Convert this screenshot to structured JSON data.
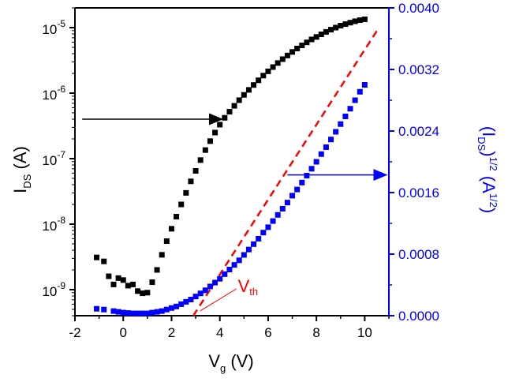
{
  "chart_data": {
    "type": "scatter",
    "x_axis": {
      "label": "V",
      "label_sub": "g",
      "label_unit": " (V)",
      "range": [
        -2,
        11
      ],
      "ticks": [
        -2,
        0,
        2,
        4,
        6,
        8,
        10
      ],
      "tick_labels": [
        "-2",
        "0",
        "2",
        "4",
        "6",
        "8",
        "10"
      ]
    },
    "y_left": {
      "label": "I",
      "label_sub": "DS",
      "label_unit": " (A)",
      "scale": "log",
      "range": [
        4e-10,
        2e-05
      ],
      "ticks": [
        1e-09,
        1e-08,
        1e-07,
        1e-06,
        1e-05
      ],
      "tick_mantissa": "10",
      "tick_exponents": [
        "-9",
        "-8",
        "-7",
        "-6",
        "-5"
      ],
      "color": "#000000"
    },
    "y_right": {
      "label_open": "(I",
      "label_sub": "DS",
      "label_mid": ")",
      "label_sup": "1/2",
      "label_unit_open": " (A",
      "label_unit_sup": "1/2",
      "label_unit_close": ")",
      "scale": "linear",
      "range": [
        0,
        0.004
      ],
      "ticks": [
        0,
        0.0008,
        0.0016,
        0.0024,
        0.0032,
        0.004
      ],
      "tick_labels": [
        "0.0000",
        "0.0008",
        "0.0016",
        "0.0024",
        "0.0032",
        "0.0040"
      ],
      "color": "#0000ff"
    },
    "series": [
      {
        "axis": "left",
        "color": "#000000",
        "marker": "square",
        "points": [
          [
            -1.1,
            3.1e-09
          ],
          [
            -0.8,
            2.7e-09
          ],
          [
            -0.6,
            1.6e-09
          ],
          [
            -0.4,
            1.2e-09
          ],
          [
            -0.2,
            1.5e-09
          ],
          [
            0.0,
            1.4e-09
          ],
          [
            0.2,
            1.15e-09
          ],
          [
            0.4,
            1.2e-09
          ],
          [
            0.6,
            9.5e-10
          ],
          [
            0.8,
            8.8e-10
          ],
          [
            1.0,
            9e-10
          ],
          [
            1.2,
            1.3e-09
          ],
          [
            1.4,
            2e-09
          ],
          [
            1.6,
            3.4e-09
          ],
          [
            1.8,
            5.5e-09
          ],
          [
            2.0,
            8.5e-09
          ],
          [
            2.2,
            1.3e-08
          ],
          [
            2.4,
            2e-08
          ],
          [
            2.6,
            3e-08
          ],
          [
            2.8,
            4.5e-08
          ],
          [
            3.0,
            6.5e-08
          ],
          [
            3.2,
            9.5e-08
          ],
          [
            3.4,
            1.35e-07
          ],
          [
            3.6,
            1.85e-07
          ],
          [
            3.8,
            2.5e-07
          ],
          [
            4.0,
            3.3e-07
          ],
          [
            4.2,
            4.2e-07
          ],
          [
            4.4,
            5.2e-07
          ],
          [
            4.6,
            6.4e-07
          ],
          [
            4.8,
            7.8e-07
          ],
          [
            5.0,
            9.4e-07
          ],
          [
            5.2,
            1.12e-06
          ],
          [
            5.4,
            1.33e-06
          ],
          [
            5.6,
            1.57e-06
          ],
          [
            5.8,
            1.85e-06
          ],
          [
            6.0,
            2.15e-06
          ],
          [
            6.2,
            2.5e-06
          ],
          [
            6.4,
            2.88e-06
          ],
          [
            6.6,
            3.3e-06
          ],
          [
            6.8,
            3.75e-06
          ],
          [
            7.0,
            4.25e-06
          ],
          [
            7.2,
            4.8e-06
          ],
          [
            7.4,
            5.35e-06
          ],
          [
            7.6,
            5.95e-06
          ],
          [
            7.8,
            6.6e-06
          ],
          [
            8.0,
            7.2e-06
          ],
          [
            8.2,
            7.9e-06
          ],
          [
            8.4,
            8.6e-06
          ],
          [
            8.6,
            9.3e-06
          ],
          [
            8.8,
            1e-05
          ],
          [
            9.0,
            1.07e-05
          ],
          [
            9.2,
            1.13e-05
          ],
          [
            9.4,
            1.19e-05
          ],
          [
            9.6,
            1.25e-05
          ],
          [
            9.8,
            1.3e-05
          ],
          [
            10.0,
            1.34e-05
          ]
        ]
      },
      {
        "axis": "right",
        "color": "#0000ff",
        "marker": "square",
        "points": [
          [
            -1.1,
            9e-05
          ],
          [
            -0.8,
            8e-05
          ],
          [
            -0.4,
            6e-05
          ],
          [
            -0.2,
            5e-05
          ],
          [
            0.0,
            4e-05
          ],
          [
            0.2,
            3.5e-05
          ],
          [
            0.4,
            3e-05
          ],
          [
            0.6,
            3e-05
          ],
          [
            0.8,
            3e-05
          ],
          [
            1.0,
            3e-05
          ],
          [
            1.2,
            4e-05
          ],
          [
            1.4,
            5e-05
          ],
          [
            1.6,
            6e-05
          ],
          [
            1.8,
            8e-05
          ],
          [
            2.0,
            0.0001
          ],
          [
            2.2,
            0.00012
          ],
          [
            2.4,
            0.00015
          ],
          [
            2.6,
            0.00018
          ],
          [
            2.8,
            0.00021
          ],
          [
            3.0,
            0.00025
          ],
          [
            3.2,
            0.00029
          ],
          [
            3.4,
            0.00033
          ],
          [
            3.6,
            0.00038
          ],
          [
            3.8,
            0.00043
          ],
          [
            4.0,
            0.00048
          ],
          [
            4.2,
            0.00054
          ],
          [
            4.4,
            0.0006
          ],
          [
            4.6,
            0.00066
          ],
          [
            4.8,
            0.00072
          ],
          [
            5.0,
            0.00079
          ],
          [
            5.2,
            0.00086
          ],
          [
            5.4,
            0.00093
          ],
          [
            5.6,
            0.001
          ],
          [
            5.8,
            0.00108
          ],
          [
            6.0,
            0.00115
          ],
          [
            6.2,
            0.00123
          ],
          [
            6.4,
            0.00131
          ],
          [
            6.6,
            0.00139
          ],
          [
            6.8,
            0.00147
          ],
          [
            7.0,
            0.00156
          ],
          [
            7.2,
            0.00164
          ],
          [
            7.4,
            0.00173
          ],
          [
            7.6,
            0.00182
          ],
          [
            7.8,
            0.00191
          ],
          [
            8.0,
            0.002
          ],
          [
            8.2,
            0.0021
          ],
          [
            8.4,
            0.00219
          ],
          [
            8.6,
            0.00229
          ],
          [
            8.8,
            0.00239
          ],
          [
            9.0,
            0.00249
          ],
          [
            9.2,
            0.00259
          ],
          [
            9.4,
            0.00269
          ],
          [
            9.6,
            0.0028
          ],
          [
            9.8,
            0.00291
          ],
          [
            10.0,
            0.003
          ]
        ]
      }
    ],
    "fit_line": {
      "axis": "right",
      "color": "#ff0000",
      "style": "dashed",
      "from": [
        2.9,
        0
      ],
      "to": [
        10.5,
        0.0037
      ]
    },
    "annotations": [
      {
        "text": "V",
        "sub": "th",
        "color": "#ff0000",
        "points_to": [
          3.05,
          0
        ]
      }
    ],
    "arrows": [
      {
        "axis": "left",
        "direction": "left",
        "color": "#000000",
        "y": 4e-07,
        "x_from": 3.6,
        "x_to": -1.7
      },
      {
        "axis": "right",
        "direction": "right",
        "color": "#0000ff",
        "y": 0.00183,
        "x_from": 6.8,
        "x_to": 10.9
      }
    ],
    "grid": false,
    "legend": "none"
  }
}
